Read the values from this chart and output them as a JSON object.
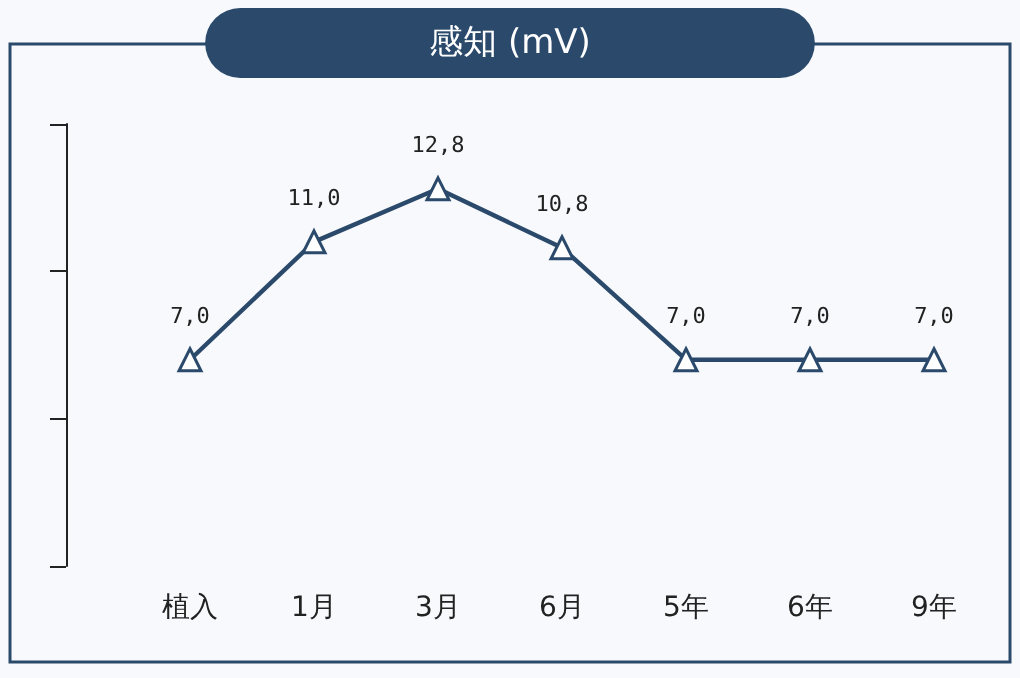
{
  "chart_data": {
    "type": "line",
    "title": "感知 (mV)",
    "categories": [
      "植入",
      "1月",
      "3月",
      "6月",
      "5年",
      "6年",
      "9年"
    ],
    "series": [
      {
        "color": "#2b4a6b",
        "values": [
          7.0,
          11.0,
          12.8,
          10.8,
          7.0,
          7.0,
          7.0
        ],
        "value_labels": [
          "7,0",
          "11,0",
          "12,8",
          "10,8",
          "7,0",
          "7,0",
          "7,0"
        ]
      }
    ],
    "tick_labels": "x",
    "grid": false,
    "marker": "triangle",
    "line_style": "solid"
  }
}
